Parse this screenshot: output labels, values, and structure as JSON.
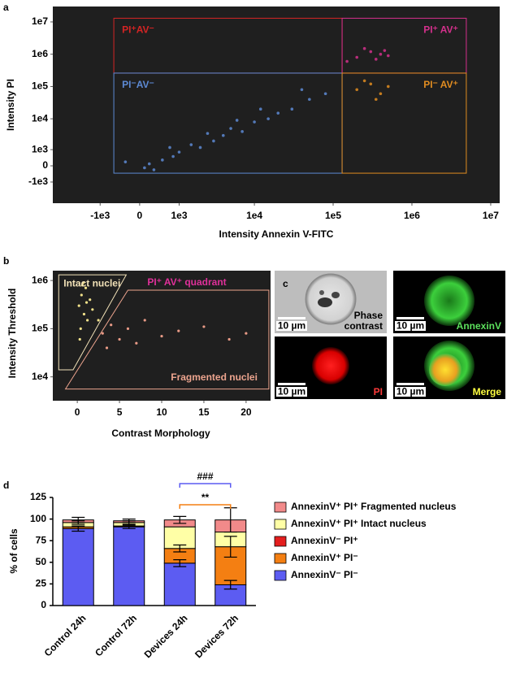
{
  "panel_labels": [
    "a",
    "b",
    "c",
    "d"
  ],
  "chart_data": [
    {
      "type": "scatter",
      "scale": "biexponential",
      "background": "#1f1f1f",
      "xlabel": "Intensity Annexin V-FITC",
      "ylabel": "Intensity PI",
      "xlim": [
        -4400,
        13000000
      ],
      "ylim": [
        -5000,
        30000000
      ],
      "xticks": [
        {
          "value": -1000,
          "label": "-1e3"
        },
        0,
        {
          "value": 1000,
          "label": "1e3"
        },
        {
          "value": 10000,
          "label": "1e4"
        },
        {
          "value": 100000,
          "label": "1e5"
        },
        {
          "value": 1000000,
          "label": "1e6"
        },
        {
          "value": 10000000,
          "label": "1e7"
        }
      ],
      "yticks": [
        {
          "value": -1000,
          "label": "-1e3"
        },
        0,
        {
          "value": 1000,
          "label": "1e3"
        },
        {
          "value": 10000,
          "label": "1e4"
        },
        {
          "value": 100000,
          "label": "1e5"
        },
        {
          "value": 1000000,
          "label": "1e6"
        },
        {
          "value": 10000000,
          "label": "1e7"
        }
      ],
      "gates": [
        {
          "label": "PI⁺AV⁻",
          "color": "#d42424",
          "label_position": "top-left",
          "x": [
            -580,
            130000
          ],
          "y": [
            260000,
            13000000
          ]
        },
        {
          "label": "PI⁺ AV⁺",
          "color": "#d4308c",
          "label_position": "top-right",
          "x": [
            130000,
            4900000
          ],
          "y": [
            260000,
            13000000
          ]
        },
        {
          "label": "PI⁻AV⁻",
          "color": "#5d8ad4",
          "label_position": "top-left",
          "x": [
            -580,
            130000
          ],
          "y": [
            -384,
            260000
          ]
        },
        {
          "label": "PI⁻ AV⁺",
          "color": "#e08c20",
          "label_position": "top-right",
          "x": [
            130000,
            4900000
          ],
          "y": [
            -384,
            260000
          ]
        }
      ],
      "x": [
        200,
        500,
        800,
        300,
        1000,
        1500,
        2000,
        3000,
        4000,
        5000,
        7000,
        10000,
        15000,
        20000,
        30000,
        50000,
        80000,
        -300,
        100,
        2500,
        6000,
        12000,
        40000,
        700,
        200000,
        300000,
        400000,
        250000,
        500000,
        350000,
        200000,
        300000,
        400000,
        250000,
        500000,
        350000,
        150000,
        450000
      ],
      "values": [
        100,
        300,
        500,
        -200,
        800,
        1500,
        1200,
        2000,
        3000,
        5000,
        4000,
        8000,
        10000,
        15000,
        20000,
        40000,
        60000,
        200,
        -100,
        3500,
        9000,
        20000,
        80000,
        1200,
        80000,
        120000,
        60000,
        150000,
        100000,
        40000,
        800000,
        1200000,
        1000000,
        1500000,
        900000,
        700000,
        600000,
        1300000
      ]
    },
    {
      "type": "scatter",
      "yscale": "log",
      "background": "#1f1f1f",
      "xlabel": "Contrast Morphology",
      "ylabel": "Intensity Threshold",
      "annotation": "PI⁺ AV⁺  quadrant",
      "annotation_color": "#e0309a",
      "xlim": [
        -2.9,
        22.9
      ],
      "ylim": [
        3200,
        1600000
      ],
      "xticks": [
        0,
        5,
        10,
        15,
        20
      ],
      "yticks": [
        {
          "value": 10000,
          "label": "1e4"
        },
        {
          "value": 100000,
          "label": "1e5"
        },
        {
          "value": 1000000,
          "label": "1e6"
        }
      ],
      "gates": [
        {
          "label": "Intact nuclei",
          "color": "#f2e2b8",
          "point_color": "#f0e08a",
          "label_position": "top-left",
          "x": [
            -2.2,
            5.8,
            -0.5,
            -2.2
          ],
          "y": [
            1310000,
            1310000,
            14000,
            14000
          ]
        },
        {
          "label": "Fragmented nuclei",
          "color": "#eca48e",
          "point_color": "#e89a86",
          "label_position": "bottom-right",
          "x": [
            6,
            22.7,
            22.7,
            -1.4
          ],
          "y": [
            630000,
            630000,
            5600,
            5600
          ]
        }
      ],
      "x": [
        0.2,
        0.5,
        0.8,
        1,
        1.2,
        0.4,
        1.5,
        0.6,
        1.8,
        0.3,
        1.1,
        0.7,
        2.5,
        3,
        4,
        5,
        6,
        8,
        10,
        12,
        15,
        18,
        20,
        3.5,
        7
      ],
      "values": [
        300000,
        500000,
        200000,
        700000,
        150000,
        100000,
        400000,
        800000,
        250000,
        60000,
        350000,
        900000,
        150000,
        80000,
        120000,
        60000,
        100000,
        150000,
        70000,
        90000,
        110000,
        60000,
        80000,
        40000,
        50000
      ]
    },
    {
      "type": "bar",
      "stacked": true,
      "ylabel": "% of cells",
      "categories": [
        "Control 24h",
        "Control 72h",
        "Devices 24h",
        "Devices 72h"
      ],
      "ylim": [
        0,
        125
      ],
      "yticks": [
        0,
        25,
        50,
        75,
        100,
        125
      ],
      "series": [
        {
          "name": "AnnexinV⁻ PI⁻",
          "color": "#5c5cf2",
          "values": [
            89,
            91,
            49,
            24
          ],
          "errors": [
            3,
            2,
            4,
            5
          ]
        },
        {
          "name": "AnnexinV⁺ PI⁻",
          "color": "#f47f12",
          "values": [
            2,
            1,
            17,
            44
          ],
          "errors": [
            null,
            null,
            4,
            12
          ]
        },
        {
          "name": "AnnexinV⁻ PI⁺",
          "color": "#e41e1e",
          "values": [
            0,
            0,
            0,
            0
          ],
          "errors": [
            null,
            null,
            null,
            null
          ]
        },
        {
          "name": "AnnexinV⁺ PI⁺ Intact nucleus",
          "color": "#ffffa6",
          "values": [
            5,
            4,
            25,
            17
          ],
          "errors": [
            2,
            2,
            null,
            null
          ]
        },
        {
          "name": "AnnexinV⁺ PI⁺ Fragmented nucleus",
          "color": "#f28a8a",
          "values": [
            3,
            2,
            8,
            14
          ],
          "errors": [
            3,
            2,
            4,
            14
          ]
        }
      ],
      "annotations": [
        {
          "text": "###",
          "color": "#5c5cf2",
          "span": [
            2,
            3
          ]
        },
        {
          "text": "**",
          "color": "#f47f12",
          "span": [
            2,
            3
          ]
        }
      ]
    }
  ],
  "images": [
    {
      "label": [
        "Phase",
        "contrast"
      ],
      "label_color": "#000000",
      "scale_bar": "10 µm"
    },
    {
      "label": [
        "AnnexinV"
      ],
      "label_color": "#5ce05c",
      "scale_bar": "10 µm"
    },
    {
      "label": [
        "PI"
      ],
      "label_color": "#ff3a3a",
      "scale_bar": "10 µm"
    },
    {
      "label": [
        "Merge"
      ],
      "label_color": "#ffff40",
      "scale_bar": "10 µm"
    }
  ]
}
